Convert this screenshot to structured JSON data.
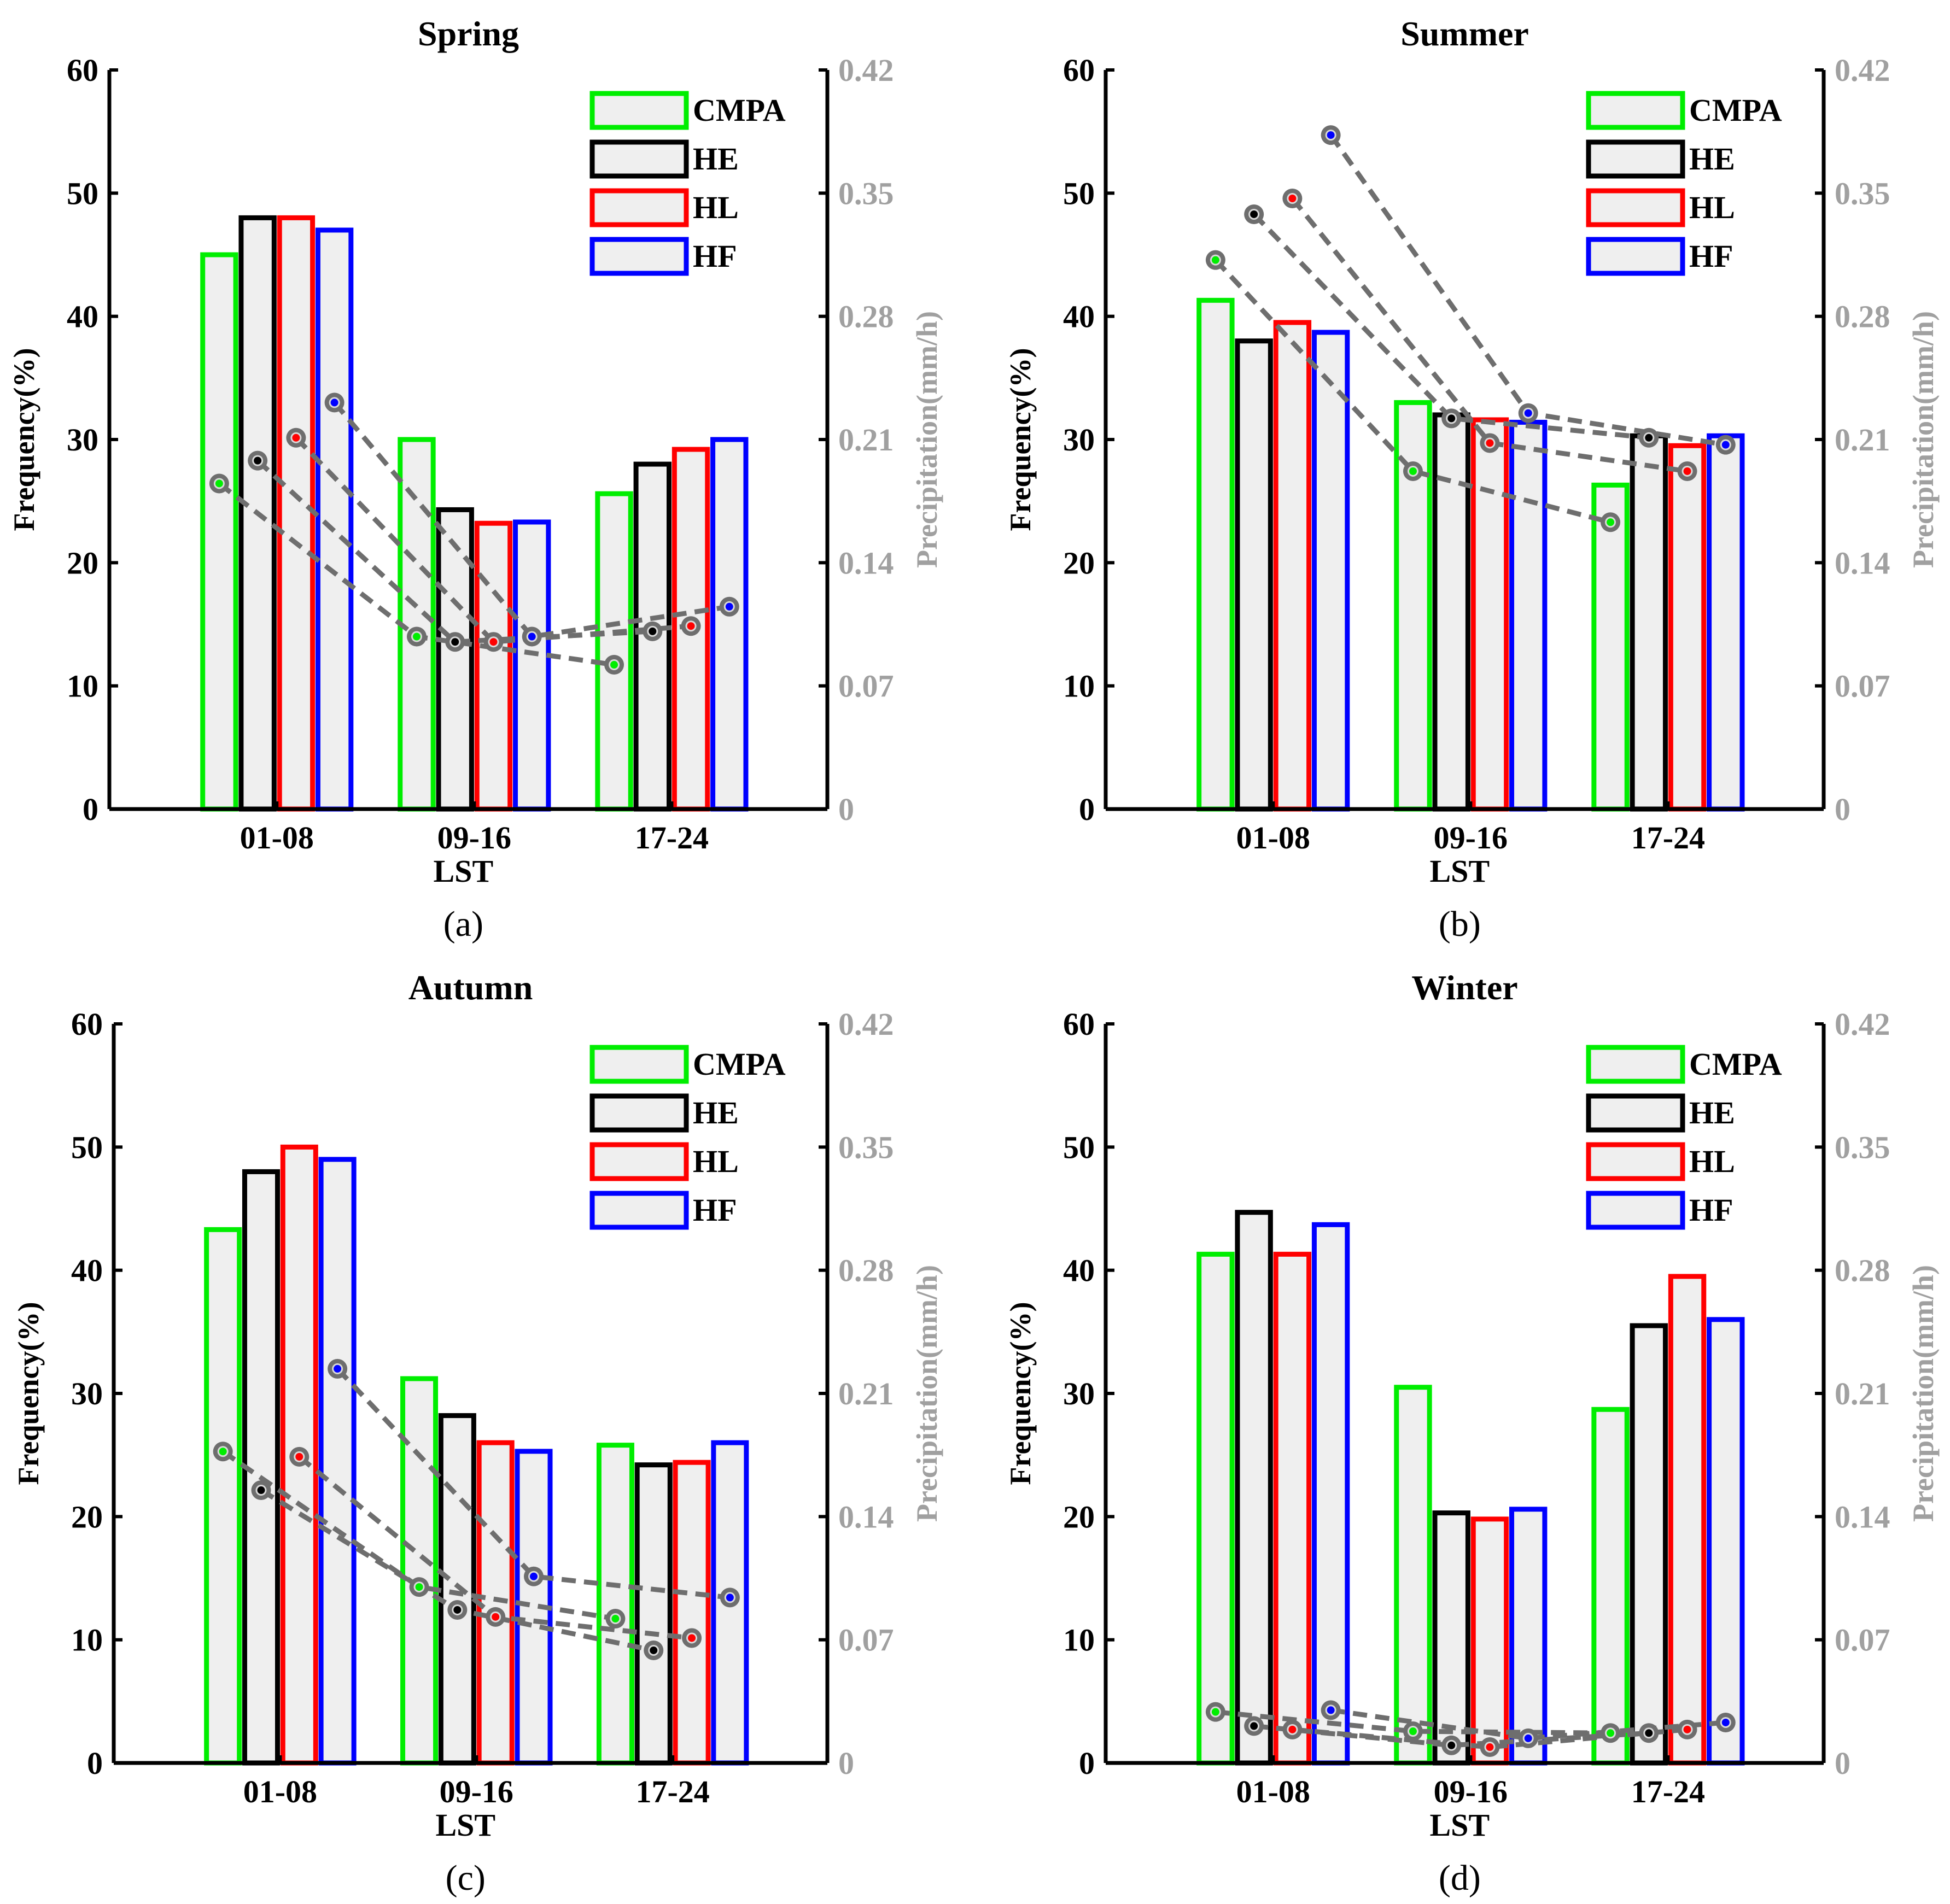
{
  "figure": {
    "series_order": [
      "CMPA",
      "HE",
      "HL",
      "HF"
    ],
    "colors": {
      "CMPA": "#00ee00",
      "HE": "#000000",
      "HL": "#ff0000",
      "HF": "#0000ff",
      "bar_fill": "#efefef",
      "line": "#6e6e6e",
      "right_axis_text": "#a0a0a0"
    }
  },
  "chart_data": [
    {
      "type": "bar",
      "title": "Spring",
      "panel_label": "(a)",
      "xlabel": "LST",
      "ylabel": "Frequency(%)",
      "ylabel_right": "Precipitation(mm/h)",
      "categories": [
        "01-08",
        "09-16",
        "17-24"
      ],
      "ylim": [
        0,
        60
      ],
      "yticks": [
        "0",
        "10",
        "20",
        "30",
        "40",
        "50",
        "60"
      ],
      "ylim_right": [
        0,
        0.42
      ],
      "yticks_right": [
        "0",
        "0.07",
        "0.14",
        "0.21",
        "0.28",
        "0.35",
        "0.42"
      ],
      "legend": [
        "CMPA",
        "HE",
        "HL",
        "HF"
      ],
      "series": [
        {
          "name": "CMPA",
          "values": [
            45,
            30,
            25.6
          ],
          "precip": [
            0.185,
            0.098,
            0.082
          ]
        },
        {
          "name": "HE",
          "values": [
            48,
            24.3,
            28
          ],
          "precip": [
            0.198,
            0.095,
            0.101
          ]
        },
        {
          "name": "HL",
          "values": [
            48,
            23.2,
            29.2
          ],
          "precip": [
            0.211,
            0.095,
            0.104
          ]
        },
        {
          "name": "HF",
          "values": [
            47,
            23.3,
            30
          ],
          "precip": [
            0.231,
            0.098,
            0.115
          ]
        }
      ]
    },
    {
      "type": "bar",
      "title": "Summer",
      "panel_label": "(b)",
      "xlabel": "LST",
      "ylabel": "Frequency(%)",
      "ylabel_right": "Precipitation(mm/h)",
      "categories": [
        "01-08",
        "09-16",
        "17-24"
      ],
      "ylim": [
        0,
        60
      ],
      "yticks": [
        "0",
        "10",
        "20",
        "30",
        "40",
        "50",
        "60"
      ],
      "ylim_right": [
        0,
        0.42
      ],
      "yticks_right": [
        "0",
        "0.07",
        "0.14",
        "0.21",
        "0.28",
        "0.35",
        "0.42"
      ],
      "legend": [
        "CMPA",
        "HE",
        "HL",
        "HF"
      ],
      "series": [
        {
          "name": "CMPA",
          "values": [
            41.3,
            33,
            26.3
          ],
          "precip": [
            0.312,
            0.192,
            0.163
          ]
        },
        {
          "name": "HE",
          "values": [
            38,
            32,
            30.3
          ],
          "precip": [
            0.338,
            0.222,
            0.211
          ]
        },
        {
          "name": "HL",
          "values": [
            39.5,
            31.6,
            29.5
          ],
          "precip": [
            0.347,
            0.208,
            0.192
          ]
        },
        {
          "name": "HF",
          "values": [
            38.7,
            31.4,
            30.3
          ],
          "precip": [
            0.383,
            0.225,
            0.207
          ]
        }
      ]
    },
    {
      "type": "bar",
      "title": "Autumn",
      "panel_label": "(c)",
      "xlabel": "LST",
      "ylabel": "Frequency(%)",
      "ylabel_right": "Precipitation(mm/h)",
      "categories": [
        "01-08",
        "09-16",
        "17-24"
      ],
      "ylim": [
        0,
        60
      ],
      "yticks": [
        "0",
        "10",
        "20",
        "30",
        "40",
        "50",
        "60"
      ],
      "ylim_right": [
        0,
        0.42
      ],
      "yticks_right": [
        "0",
        "0.07",
        "0.14",
        "0.21",
        "0.28",
        "0.35",
        "0.42"
      ],
      "legend": [
        "CMPA",
        "HE",
        "HL",
        "HF"
      ],
      "series": [
        {
          "name": "CMPA",
          "values": [
            43.3,
            31.2,
            25.8
          ],
          "precip": [
            0.177,
            0.1,
            0.082
          ]
        },
        {
          "name": "HE",
          "values": [
            48,
            28.2,
            24.2
          ],
          "precip": [
            0.155,
            0.087,
            0.064
          ]
        },
        {
          "name": "HL",
          "values": [
            50,
            26,
            24.4
          ],
          "precip": [
            0.174,
            0.083,
            0.071
          ]
        },
        {
          "name": "HF",
          "values": [
            49,
            25.3,
            26
          ],
          "precip": [
            0.224,
            0.106,
            0.094
          ]
        }
      ]
    },
    {
      "type": "bar",
      "title": "Winter",
      "panel_label": "(d)",
      "xlabel": "LST",
      "ylabel": "Frequency(%)",
      "ylabel_right": "Precipitation(mm/h)",
      "categories": [
        "01-08",
        "09-16",
        "17-24"
      ],
      "ylim": [
        0,
        60
      ],
      "yticks": [
        "0",
        "10",
        "20",
        "30",
        "40",
        "50",
        "60"
      ],
      "ylim_right": [
        0,
        0.42
      ],
      "yticks_right": [
        "0",
        "0.07",
        "0.14",
        "0.21",
        "0.28",
        "0.35",
        "0.42"
      ],
      "legend": [
        "CMPA",
        "HE",
        "HL",
        "HF"
      ],
      "series": [
        {
          "name": "CMPA",
          "values": [
            41.3,
            30.5,
            28.7
          ],
          "precip": [
            0.029,
            0.018,
            0.017
          ]
        },
        {
          "name": "HE",
          "values": [
            44.7,
            20.3,
            35.5
          ],
          "precip": [
            0.021,
            0.01,
            0.017
          ]
        },
        {
          "name": "HL",
          "values": [
            41.3,
            19.8,
            39.5
          ],
          "precip": [
            0.019,
            0.009,
            0.019
          ]
        },
        {
          "name": "HF",
          "values": [
            43.7,
            20.6,
            36
          ],
          "precip": [
            0.03,
            0.014,
            0.023
          ]
        }
      ]
    }
  ]
}
